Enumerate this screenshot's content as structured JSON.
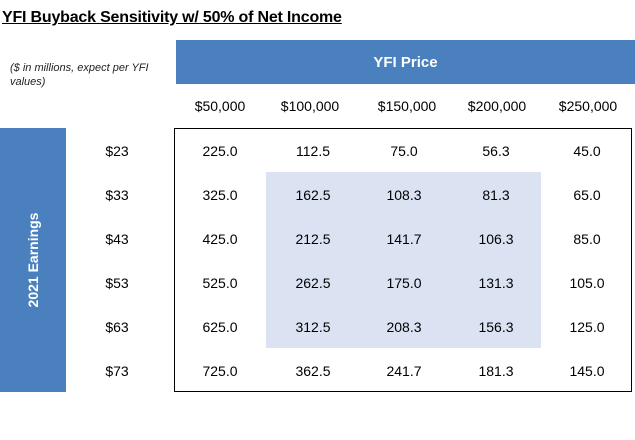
{
  "title": "YFI Buyback Sensitivity w/ 50% of Net Income",
  "note": "($ in millions, expect per YFI values)",
  "col_axis_label": "YFI Price",
  "row_axis_label": "2021 Earnings",
  "colors": {
    "band": "#4a80bd",
    "highlight": "#dbe3f3"
  },
  "columns": [
    "$50,000",
    "$100,000",
    "$150,000",
    "$200,000",
    "$250,000"
  ],
  "rows": [
    {
      "label": "$23",
      "values": [
        "225.0",
        "112.5",
        "75.0",
        "56.3",
        "45.0"
      ]
    },
    {
      "label": "$33",
      "values": [
        "325.0",
        "162.5",
        "108.3",
        "81.3",
        "65.0"
      ]
    },
    {
      "label": "$43",
      "values": [
        "425.0",
        "212.5",
        "141.7",
        "106.3",
        "85.0"
      ]
    },
    {
      "label": "$53",
      "values": [
        "525.0",
        "262.5",
        "175.0",
        "131.3",
        "105.0"
      ]
    },
    {
      "label": "$63",
      "values": [
        "625.0",
        "312.5",
        "208.3",
        "156.3",
        "125.0"
      ]
    },
    {
      "label": "$73",
      "values": [
        "725.0",
        "362.5",
        "241.7",
        "181.3",
        "145.0"
      ]
    }
  ]
}
